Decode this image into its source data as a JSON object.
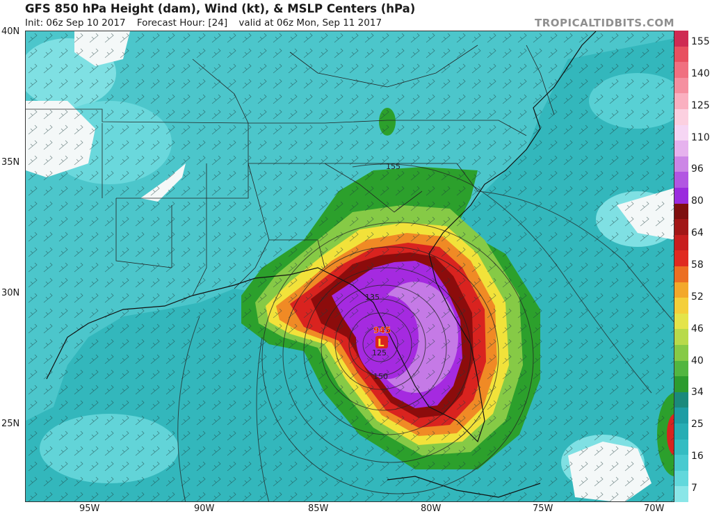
{
  "header": {
    "title": "GFS 850 hPa Height (dam), Wind (kt), & MSLP Centers (hPa)",
    "init": "Init: 06z Sep 10 2017",
    "forecast_hour": "Forecast Hour: [24]",
    "valid": "valid at 06z Mon, Sep 11 2017",
    "brand": "TROPICALTIDBITS.COM"
  },
  "map": {
    "lat_labels": [
      "40N",
      "35N",
      "30N",
      "25N"
    ],
    "lon_labels": [
      "95W",
      "90W",
      "85W",
      "80W",
      "75W",
      "70W"
    ],
    "contour_labels": [
      "155",
      "135",
      "125",
      "150"
    ],
    "center_pressure": "945",
    "center_marker": "L",
    "colors": {
      "ocean_calm": "#33b7bc",
      "land_calm": "#5ccfd4",
      "ts_green": "#2ca02c",
      "yellow": "#f2e23a",
      "orange": "#f08a25",
      "red": "#d9231f",
      "darkred": "#8c0c0c",
      "purple": "#a52ae0",
      "light_purple": "#d08ee8"
    }
  },
  "colorbar": {
    "labels": [
      "155",
      "140",
      "125",
      "110",
      "96",
      "80",
      "64",
      "58",
      "52",
      "46",
      "40",
      "34",
      "25",
      "16",
      "7"
    ],
    "segments": [
      "#cf2b53",
      "#e85060",
      "#f07080",
      "#f590a0",
      "#fab0c0",
      "#fcd0e0",
      "#f6d6f4",
      "#e6b2ee",
      "#cc86e6",
      "#b256e2",
      "#9a2bde",
      "#7e0f0f",
      "#a21616",
      "#c81e1e",
      "#e02a20",
      "#ec6f22",
      "#f3a82a",
      "#f4cf3a",
      "#e4e44a",
      "#b8da4a",
      "#86ca46",
      "#52b640",
      "#2c9c2e",
      "#1a8a7c",
      "#1d9da4",
      "#27adb4",
      "#34bcc2",
      "#48cad0",
      "#62d8dc",
      "#8ae6e8"
    ]
  }
}
